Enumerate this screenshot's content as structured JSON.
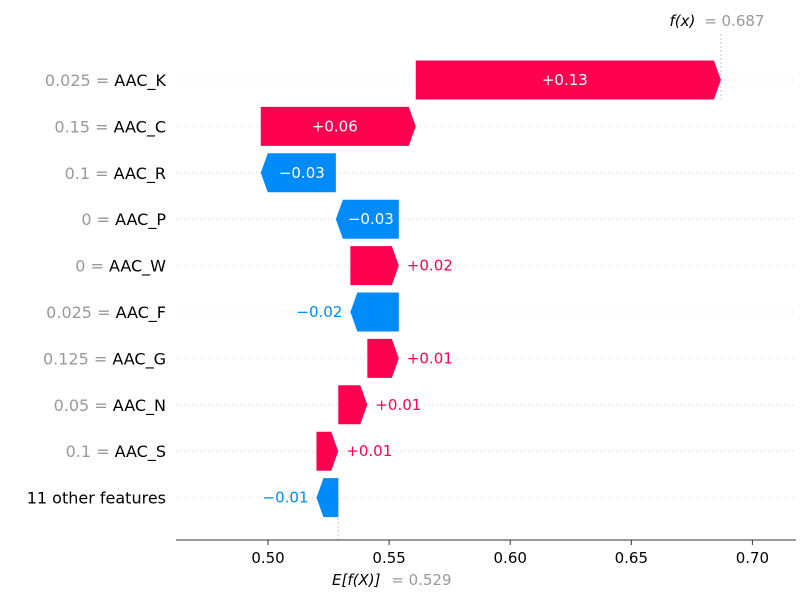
{
  "chart_data": {
    "type": "waterfall",
    "base_value": 0.529,
    "output_value": 0.687,
    "base_label_prefix": "E[f(X)]",
    "base_label_value": "= 0.529",
    "output_label_prefix": "f(x)",
    "output_label_value": "= 0.687",
    "xlim": [
      0.462,
      0.718
    ],
    "xticks": [
      0.5,
      0.55,
      0.6,
      0.65,
      0.7
    ],
    "xtick_labels": [
      "0.50",
      "0.55",
      "0.60",
      "0.65",
      "0.70"
    ],
    "features": [
      {
        "value": "0.025",
        "name": "AAC_K",
        "display": "+0.13",
        "start": 0.561,
        "end": 0.687
      },
      {
        "value": "0.15",
        "name": "AAC_C",
        "display": "+0.06",
        "start": 0.497,
        "end": 0.561
      },
      {
        "value": "0.1",
        "name": "AAC_R",
        "display": "−0.03",
        "start": 0.528,
        "end": 0.497
      },
      {
        "value": "0",
        "name": "AAC_P",
        "display": "−0.03",
        "start": 0.554,
        "end": 0.528
      },
      {
        "value": "0",
        "name": "AAC_W",
        "display": "+0.02",
        "start": 0.534,
        "end": 0.554
      },
      {
        "value": "0.025",
        "name": "AAC_F",
        "display": "−0.02",
        "start": 0.554,
        "end": 0.534
      },
      {
        "value": "0.125",
        "name": "AAC_G",
        "display": "+0.01",
        "start": 0.541,
        "end": 0.554
      },
      {
        "value": "0.05",
        "name": "AAC_N",
        "display": "+0.01",
        "start": 0.529,
        "end": 0.541
      },
      {
        "value": "0.1",
        "name": "AAC_S",
        "display": "+0.01",
        "start": 0.52,
        "end": 0.529
      },
      {
        "value": "",
        "name": "11 other features",
        "display": "−0.01",
        "start": 0.529,
        "end": 0.52
      }
    ],
    "colors": {
      "positive": "#ff0051",
      "negative": "#008bfb",
      "feature_value": "#999999",
      "label": "#000000"
    }
  }
}
